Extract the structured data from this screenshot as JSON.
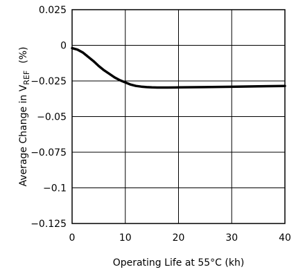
{
  "chart_data": {
    "type": "line",
    "title": "",
    "xlabel": "Operating Life at 55°C (kh)",
    "ylabel_prefix": "Average Change in V",
    "ylabel_sub": "REF",
    "ylabel_unit": "(%)",
    "xlim": [
      0,
      40
    ],
    "ylim": [
      -0.125,
      0.025
    ],
    "x_ticks": [
      0,
      10,
      20,
      30,
      40
    ],
    "x_tick_labels": [
      "0",
      "10",
      "20",
      "30",
      "40"
    ],
    "y_ticks": [
      0.025,
      0,
      -0.025,
      -0.05,
      -0.075,
      -0.1,
      -0.125
    ],
    "y_tick_labels": [
      "0.025",
      "0",
      "−0.025",
      "−0.05",
      "−0.075",
      "−0.1",
      "−0.125"
    ],
    "grid": true,
    "series": [
      {
        "x": [
          0,
          1,
          2,
          3,
          4,
          5,
          6,
          7,
          8,
          9,
          10,
          11,
          12,
          13,
          14,
          15,
          16,
          18,
          20,
          25,
          30,
          35,
          40
        ],
        "y": [
          -0.002,
          -0.003,
          -0.005,
          -0.008,
          -0.011,
          -0.0145,
          -0.0175,
          -0.02,
          -0.0225,
          -0.0245,
          -0.026,
          -0.0275,
          -0.0285,
          -0.029,
          -0.0293,
          -0.0295,
          -0.0296,
          -0.0296,
          -0.0295,
          -0.0293,
          -0.0291,
          -0.0288,
          -0.0285
        ]
      }
    ]
  }
}
